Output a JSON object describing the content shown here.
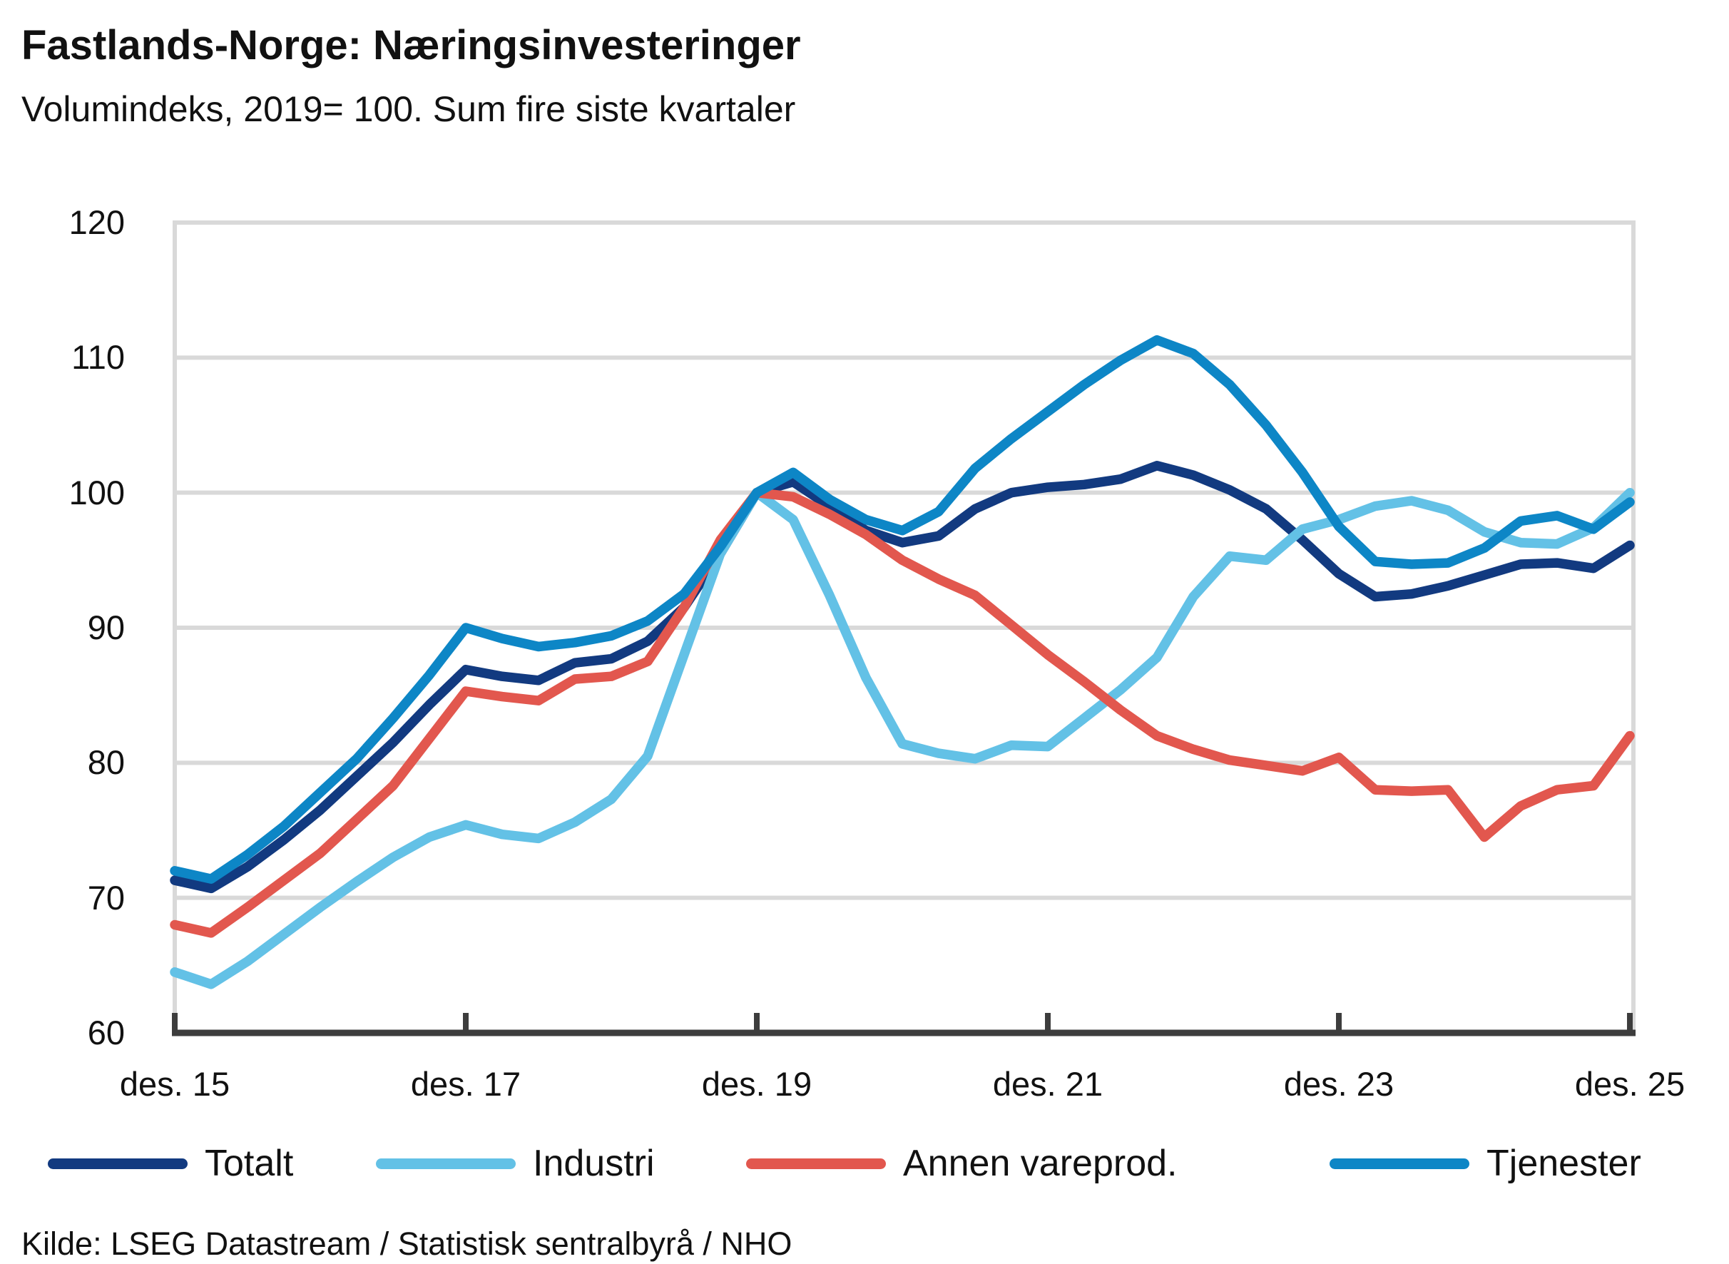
{
  "title": {
    "text": "Fastlands-Norge: Næringsinvesteringer"
  },
  "subtitle": {
    "text": "Volumindeks, 2019= 100. Sum fire siste kvartaler"
  },
  "source": {
    "text": "Kilde: LSEG Datastream / Statistisk sentralbyrå / NHO"
  },
  "colors": {
    "totalt": "#123a80",
    "industri": "#63c1e6",
    "annen_vareprod": "#e2574e",
    "tjenester": "#0d86c6",
    "gridline": "#d9d9d9",
    "axis": "#3d3d3d",
    "text": "#111111",
    "background": "#ffffff"
  },
  "legend": {
    "items": [
      {
        "label": "Totalt",
        "series": "totalt"
      },
      {
        "label": "Industri",
        "series": "industri"
      },
      {
        "label": "Annen vareprod.",
        "series": "annen_vareprod"
      },
      {
        "label": "Tjenester",
        "series": "tjenester"
      }
    ]
  },
  "y_axis": {
    "ticks": [
      120,
      110,
      100,
      90,
      80,
      70,
      60
    ],
    "min": 60,
    "max": 120
  },
  "x_axis": {
    "visible_tick_labels": [
      "des. 15",
      "des. 17",
      "des. 19",
      "des. 21",
      "des. 23",
      "des. 25"
    ],
    "visible_tick_indices": [
      0,
      8,
      16,
      24,
      32,
      40
    ]
  },
  "chart_data": {
    "type": "line",
    "title": "Fastlands-Norge: Næringsinvesteringer",
    "subtitle": "Volumindeks, 2019= 100. Sum fire siste kvartaler",
    "xlabel": "",
    "ylabel": "",
    "ylim": [
      60,
      120
    ],
    "grid": "horizontal",
    "legend_position": "bottom",
    "categories": [
      "des. 15",
      "mar. 16",
      "jun. 16",
      "sep. 16",
      "des. 16",
      "mar. 17",
      "jun. 17",
      "sep. 17",
      "des. 17",
      "mar. 18",
      "jun. 18",
      "sep. 18",
      "des. 18",
      "mar. 19",
      "jun. 19",
      "sep. 19",
      "des. 19",
      "mar. 20",
      "jun. 20",
      "sep. 20",
      "des. 20",
      "mar. 21",
      "jun. 21",
      "sep. 21",
      "des. 21",
      "mar. 22",
      "jun. 22",
      "sep. 22",
      "des. 22",
      "mar. 23",
      "jun. 23",
      "sep. 23",
      "des. 23",
      "mar. 24",
      "jun. 24",
      "sep. 24",
      "des. 24",
      "mar. 25",
      "jun. 25",
      "sep. 25",
      "des. 25"
    ],
    "series": [
      {
        "name": "Totalt",
        "color_key": "totalt",
        "values": [
          71.3,
          70.7,
          72.3,
          74.3,
          76.5,
          79,
          81.5,
          84.3,
          86.9,
          86.4,
          86.1,
          87.4,
          87.7,
          89,
          91.5,
          95.5,
          100,
          100.8,
          99,
          97.2,
          96.3,
          96.8,
          98.8,
          100,
          100.4,
          100.6,
          101,
          102,
          101.3,
          100.2,
          98.8,
          96.5,
          94,
          92.3,
          92.5,
          93.1,
          93.9,
          94.7,
          94.8,
          94.4,
          96.1
        ]
      },
      {
        "name": "Industri",
        "color_key": "industri",
        "values": [
          64.5,
          63.6,
          65.3,
          67.3,
          69.3,
          71.2,
          73,
          74.5,
          75.4,
          74.7,
          74.4,
          75.6,
          77.3,
          80.5,
          88,
          95.5,
          100,
          98,
          92.4,
          86.3,
          81.4,
          80.7,
          80.3,
          81.3,
          81.2,
          83.3,
          85.4,
          87.8,
          92.3,
          95.3,
          95,
          97.3,
          98,
          99,
          99.4,
          98.7,
          97.1,
          96.3,
          96.2,
          97.4,
          100
        ]
      },
      {
        "name": "Annen vareprod.",
        "color_key": "annen_vareprod",
        "values": [
          68,
          67.4,
          69.3,
          71.3,
          73.3,
          75.8,
          78.3,
          81.8,
          85.3,
          84.9,
          84.6,
          86.2,
          86.4,
          87.5,
          91.5,
          96.5,
          100,
          99.7,
          98.4,
          96.9,
          95,
          93.6,
          92.4,
          90.2,
          88,
          86,
          83.9,
          82,
          81,
          80.2,
          79.8,
          79.4,
          80.4,
          78,
          77.9,
          78,
          74.5,
          76.8,
          78,
          78.3,
          82
        ]
      },
      {
        "name": "Tjenester",
        "color_key": "tjenester",
        "values": [
          72,
          71.4,
          73.2,
          75.3,
          77.8,
          80.3,
          83.3,
          86.5,
          90,
          89.2,
          88.6,
          88.9,
          89.4,
          90.5,
          92.5,
          96,
          100,
          101.5,
          99.5,
          98,
          97.2,
          98.6,
          101.8,
          104,
          106,
          108,
          109.8,
          111.3,
          110.3,
          108,
          105,
          101.5,
          97.5,
          94.9,
          94.7,
          94.8,
          95.9,
          97.9,
          98.3,
          97.3,
          99.3
        ]
      }
    ]
  }
}
